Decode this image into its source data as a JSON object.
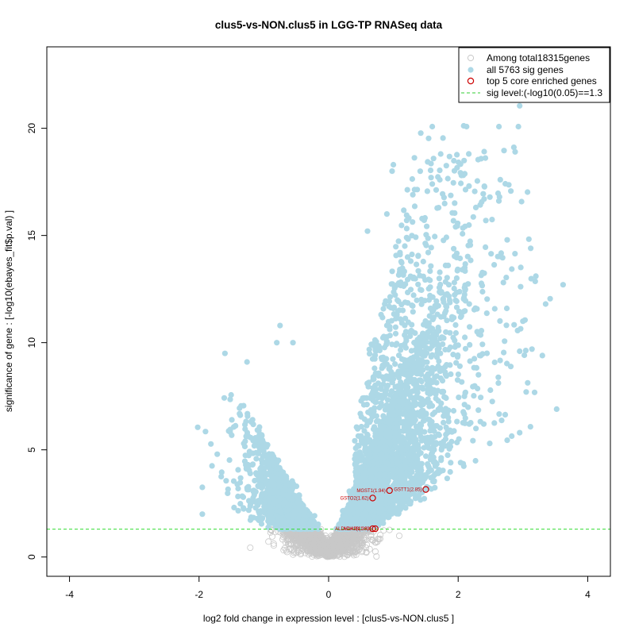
{
  "chart_data": {
    "type": "scatter",
    "title": "clus5-vs-NON.clus5 in LGG-TP RNASeq data",
    "xlabel": "log2 fold change in expression level : [clus5-vs-NON.clus5 ]",
    "ylabel": "significance of gene : [-log10(ebayes_fit$p.val) ]",
    "xlim": [
      -4.35,
      4.35
    ],
    "ylim": [
      -0.9,
      23.8
    ],
    "x_ticks": [
      -4,
      -2,
      0,
      2,
      4
    ],
    "y_ticks": [
      0,
      5,
      10,
      15,
      20
    ],
    "sig_level": 1.3,
    "legend": {
      "position": "top-right",
      "entries": [
        {
          "label": "Among total18315genes",
          "kind": "open-circle",
          "color": "#c8c8c8"
        },
        {
          "label": "all 5763 sig genes",
          "kind": "filled-circle",
          "color": "#add8e6"
        },
        {
          "label": "top 5 core enriched genes",
          "kind": "open-circle",
          "color": "#cc0000"
        },
        {
          "label": "sig level:(-log10(0.05)==1.3",
          "kind": "dashed-line",
          "color": "#33cc33"
        }
      ]
    },
    "colors": {
      "nonsig": "#c8c8c8",
      "sig": "#add8e6",
      "top": "#cc0000",
      "sigline": "#33dd33"
    },
    "top_genes": [
      {
        "label": "MGST1(1.94)",
        "x": 0.94,
        "y": 3.1
      },
      {
        "label": "GSTT1(2.85)",
        "x": 1.5,
        "y": 3.15
      },
      {
        "label": "GSTO2(1.62)",
        "x": 0.68,
        "y": 2.75
      },
      {
        "label": "ADH1B(1.62)",
        "x": 0.72,
        "y": 1.32
      },
      {
        "label": "ALDH1A2(1.33)",
        "x": 0.68,
        "y": 1.32
      }
    ],
    "sig_highlights": [
      [
        2.95,
        21.05
      ],
      [
        2.63,
        20.08
      ],
      [
        2.93,
        20.08
      ],
      [
        1.6,
        20.08
      ],
      [
        2.13,
        20.08
      ],
      [
        2.88,
        18.9
      ],
      [
        1.73,
        18.8
      ],
      [
        1.0,
        18.3
      ],
      [
        0.98,
        18.0
      ],
      [
        1.6,
        17.4
      ],
      [
        2.65,
        17.6
      ],
      [
        2.05,
        17.8
      ],
      [
        3.62,
        12.7
      ],
      [
        3.35,
        11.8
      ],
      [
        3.42,
        12.05
      ],
      [
        3.52,
        6.9
      ],
      [
        2.95,
        5.8
      ],
      [
        3.05,
        7.7
      ],
      [
        -0.75,
        10.8
      ],
      [
        -0.8,
        10.0
      ],
      [
        -0.55,
        10.0
      ],
      [
        -1.6,
        9.5
      ],
      [
        -1.26,
        9.1
      ],
      [
        -1.9,
        5.85
      ],
      [
        -2.02,
        6.05
      ],
      [
        -1.52,
        7.35
      ],
      [
        -1.35,
        7.05
      ],
      [
        -1.8,
        4.25
      ],
      [
        -1.95,
        3.25
      ],
      [
        -1.95,
        2.0
      ],
      [
        3.2,
        13.1
      ],
      [
        0.6,
        15.2
      ],
      [
        0.9,
        16.0
      ],
      [
        1.3,
        16.9
      ],
      [
        2.4,
        16.7
      ],
      [
        3.12,
        14.4
      ],
      [
        3.0,
        11.0
      ],
      [
        2.95,
        9.6
      ],
      [
        3.3,
        9.4
      ]
    ]
  }
}
